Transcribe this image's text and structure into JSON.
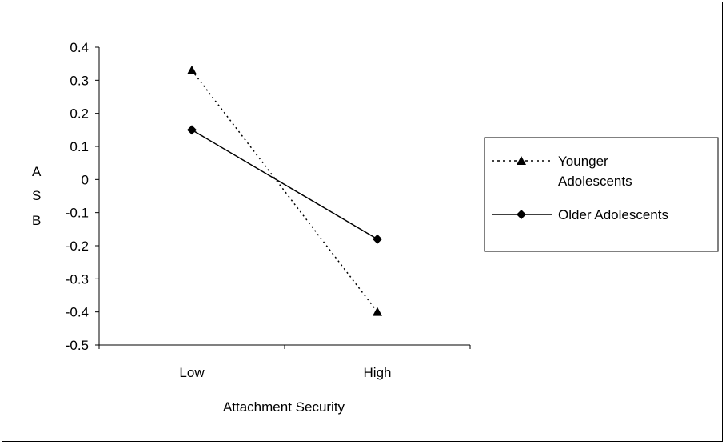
{
  "chart_data": {
    "type": "line",
    "title": "",
    "xlabel": "Attachment Security",
    "ylabel": "A S B",
    "categories": [
      "Low",
      "High"
    ],
    "ylim": [
      -0.5,
      0.4
    ],
    "yticks": [
      "0.4",
      "0.3",
      "0.2",
      "0.1",
      "0",
      "-0.1",
      "-0.2",
      "-0.3",
      "-0.4",
      "-0.5"
    ],
    "ytick_values": [
      0.4,
      0.3,
      0.2,
      0.1,
      0,
      -0.1,
      -0.2,
      -0.3,
      -0.4,
      -0.5
    ],
    "grid": false,
    "legend_position": "right",
    "series": [
      {
        "name": "Younger Adolescents",
        "values": [
          0.33,
          -0.4
        ],
        "marker": "triangle",
        "line_style": "dotted",
        "color": "#000000"
      },
      {
        "name": "Older Adolescents",
        "values": [
          0.15,
          -0.18
        ],
        "marker": "diamond",
        "line_style": "solid",
        "color": "#000000"
      }
    ]
  },
  "legend": {
    "younger_line1": "Younger",
    "younger_line2": "Adolescents",
    "older": "Older Adolescents"
  },
  "ylabel_letters": [
    "A",
    "S",
    "B"
  ]
}
